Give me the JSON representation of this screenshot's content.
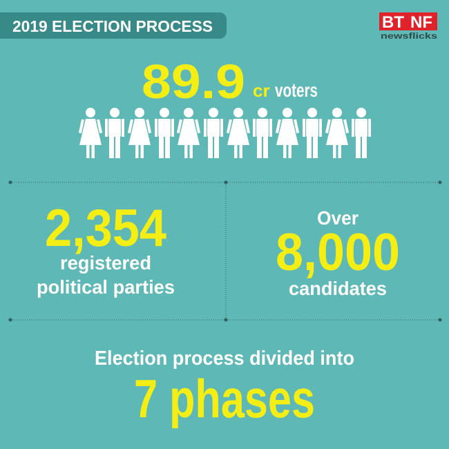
{
  "header": {
    "title": "2019 ELECTION PROCESS"
  },
  "logo": {
    "left": "BT",
    "right": "NF",
    "tagline": "newsflicks"
  },
  "voters": {
    "number": "89.9",
    "unit": "cr",
    "label": "voters"
  },
  "parties": {
    "number": "2,354",
    "lines": [
      "registered",
      "political parties"
    ]
  },
  "candidates": {
    "prefix": "Over",
    "number": "8,000",
    "label": "candidates"
  },
  "phases": {
    "intro": "Election process divided into",
    "number": "7 phases"
  }
}
